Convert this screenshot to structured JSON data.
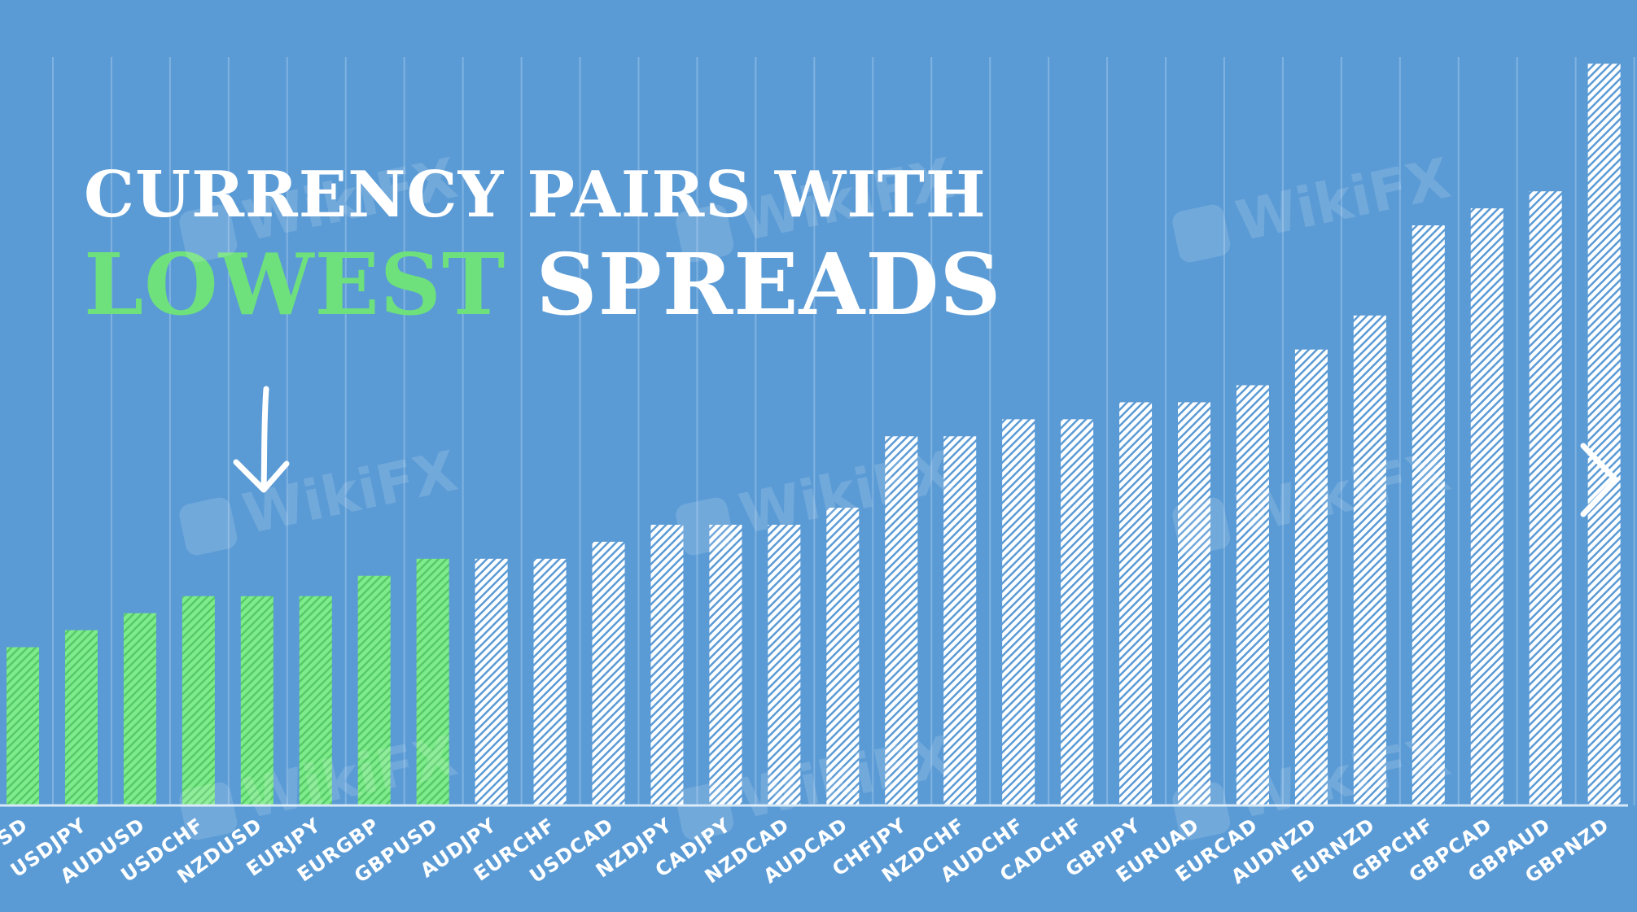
{
  "title": {
    "line1": "CURRENCY PAIRS WITH",
    "highlight": "LOWEST",
    "rest": "SPREADS"
  },
  "watermark": "WikiFX",
  "colors": {
    "background": "#5b9bd5",
    "highlight_text": "#6ee07c",
    "low_bar": "#6ee07c",
    "other_bar": "#ffffff",
    "grid": "#7fb2e0",
    "label": "#ffffff"
  },
  "icons": [
    "down-arrow-icon",
    "chevron-right-icon",
    "wikifx-logo-icon"
  ],
  "chart_data": {
    "type": "bar",
    "title": "CURRENCY PAIRS WITH LOWEST SPREADS",
    "xlabel": "",
    "ylabel": "",
    "ylim": [
      0,
      44
    ],
    "grid": "vertical",
    "categories": [
      "EURUSD",
      "USDJPY",
      "AUDUSD",
      "USDCHF",
      "NZDUSD",
      "EURJPY",
      "EURGBP",
      "GBPUSD",
      "AUDJPY",
      "EURCHF",
      "USDCAD",
      "NZDJPY",
      "CADJPY",
      "NZDCAD",
      "AUDCAD",
      "CHFJPY",
      "NZDCHF",
      "AUDCHF",
      "CADCHF",
      "GBPJPY",
      "EURUAD",
      "EURCAD",
      "AUDNZD",
      "EURNZD",
      "GBPCHF",
      "GBPCAD",
      "GBPAUD",
      "GBPNZD"
    ],
    "visible_labels": [
      "SD",
      "USDJPY",
      "AUDUSD",
      "USDCHF",
      "NZDUSD",
      "EURJPY",
      "EURGBP",
      "GBPUSD",
      "AUDJPY",
      "EURCHF",
      "USDCAD",
      "NZDJPY",
      "CADJPY",
      "NZDCAD",
      "AUDCAD",
      "CHFJPY",
      "NZDCHF",
      "AUDCHF",
      "CADCHF",
      "GBPJPY",
      "EURUAD",
      "EURCAD",
      "AUDNZD",
      "EURNZD",
      "GBPCHF",
      "GBPCAD",
      "GBPAUD",
      "GBPNZD"
    ],
    "values": [
      9.3,
      10.3,
      11.3,
      12.3,
      12.3,
      12.3,
      13.5,
      14.5,
      14.5,
      14.5,
      15.5,
      16.5,
      16.5,
      16.5,
      17.5,
      21.7,
      21.7,
      22.7,
      22.7,
      23.7,
      23.7,
      24.7,
      26.8,
      28.8,
      34.1,
      35.1,
      36.1,
      43.6
    ],
    "highlighted_count": 8
  }
}
